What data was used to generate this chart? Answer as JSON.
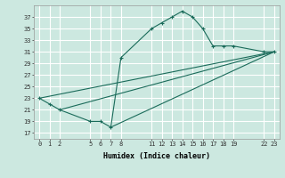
{
  "xlabel": "Humidex (Indice chaleur)",
  "bg_color": "#cce8e0",
  "grid_color": "#aacccc",
  "line_color": "#1a6b5a",
  "points": [
    [
      0,
      23
    ],
    [
      1,
      22
    ],
    [
      2,
      21
    ],
    [
      5,
      19
    ],
    [
      6,
      19
    ],
    [
      7,
      18
    ],
    [
      8,
      30
    ],
    [
      11,
      35
    ],
    [
      12,
      36
    ],
    [
      13,
      37
    ],
    [
      14,
      38
    ],
    [
      15,
      37
    ],
    [
      16,
      35
    ],
    [
      17,
      32
    ],
    [
      18,
      32
    ],
    [
      19,
      32
    ],
    [
      22,
      31
    ],
    [
      23,
      31
    ]
  ],
  "line2_points": [
    [
      0,
      23
    ],
    [
      23,
      31
    ]
  ],
  "line3_points": [
    [
      2,
      21
    ],
    [
      23,
      31
    ]
  ],
  "line4_points": [
    [
      7,
      18
    ],
    [
      23,
      31
    ]
  ],
  "xlim": [
    -0.5,
    23.5
  ],
  "ylim": [
    16,
    39
  ],
  "xticks": [
    0,
    1,
    2,
    5,
    6,
    7,
    8,
    11,
    12,
    13,
    14,
    15,
    16,
    17,
    18,
    19,
    22,
    23
  ],
  "yticks": [
    17,
    19,
    21,
    23,
    25,
    27,
    29,
    31,
    33,
    35,
    37
  ],
  "xlabel_fontsize": 6.0,
  "tick_fontsize": 5.0
}
